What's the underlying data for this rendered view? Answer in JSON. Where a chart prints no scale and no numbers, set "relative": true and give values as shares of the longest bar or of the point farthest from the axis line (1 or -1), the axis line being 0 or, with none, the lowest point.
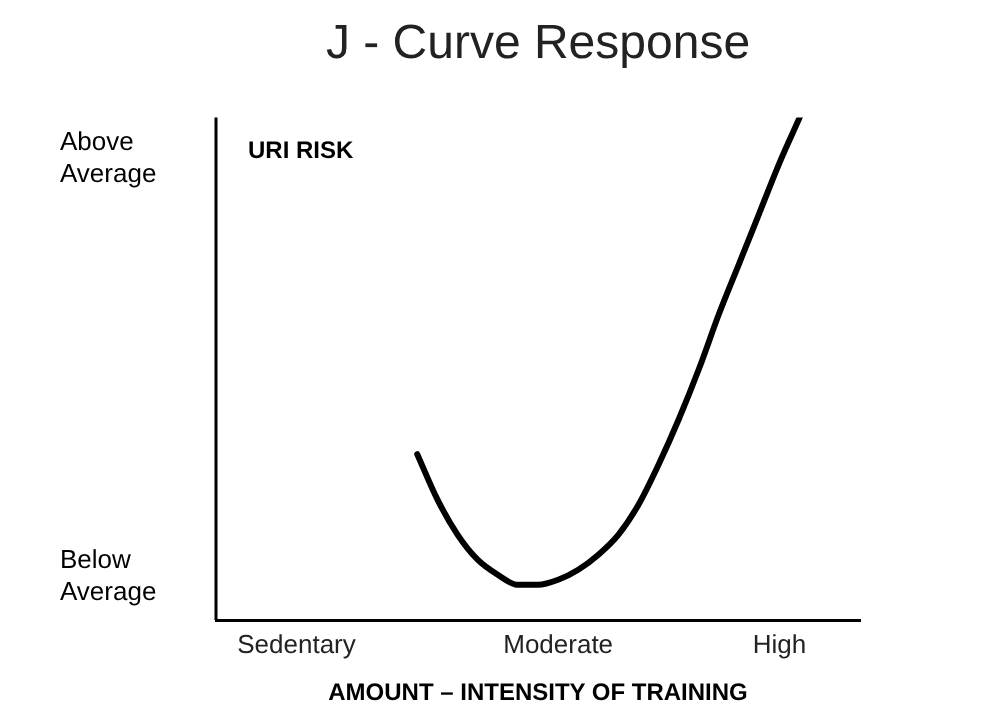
{
  "chart_data": {
    "type": "line",
    "title": "J - Curve Response",
    "xlabel": "AMOUNT – INTENSITY OF TRAINING",
    "relative": true,
    "categories": [
      null,
      null,
      null,
      null,
      "Sedentary",
      null,
      null,
      null,
      null,
      null,
      null,
      null,
      null,
      null,
      null,
      null,
      null,
      "Moderate",
      null,
      null,
      null,
      null,
      null,
      null,
      null,
      null,
      null,
      null,
      "High",
      null,
      null,
      null,
      null
    ],
    "series": [
      {
        "color": "#000000",
        "values": [
          null,
          null,
          null,
          null,
          null,
          null,
          null,
          null,
          null,
          null,
          0.33,
          0.24,
          0.17,
          0.12,
          0.09,
          0.07,
          0.07,
          0.08,
          0.1,
          0.13,
          0.17,
          0.23,
          0.31,
          0.4,
          0.5,
          0.61,
          0.71,
          0.81,
          0.91,
          1,
          null,
          null,
          null
        ]
      }
    ],
    "annotations": [
      "URI RISK",
      "Above Average",
      "Below Average"
    ],
    "grid": false,
    "legend": false,
    "marker": "none",
    "line_style": "solid"
  }
}
